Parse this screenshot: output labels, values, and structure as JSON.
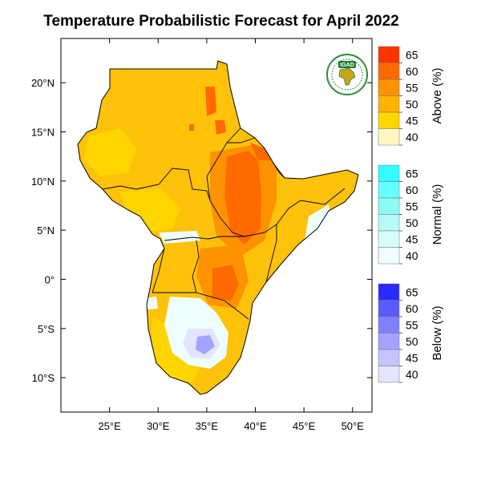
{
  "title": "Temperature Probabilistic Forecast for April 2022",
  "logo": {
    "text": "IGAD",
    "colors": {
      "ring": "#2e8b3a",
      "core": "#c9a21b",
      "badge": "#1f7a34"
    }
  },
  "axes": {
    "lon": {
      "min": 20,
      "max": 52,
      "ticks": [
        25,
        30,
        35,
        40,
        45,
        50
      ],
      "labels": [
        "25°E",
        "30°E",
        "35°E",
        "40°E",
        "45°E",
        "50°E"
      ]
    },
    "lat": {
      "min": -13.5,
      "max": 24.5,
      "ticks": [
        20,
        15,
        10,
        5,
        0,
        -5,
        -10
      ],
      "labels": [
        "20°N",
        "15°N",
        "10°N",
        "5°N",
        "0°",
        "5°S",
        "10°S"
      ]
    }
  },
  "legend": [
    {
      "title": "Above (%)",
      "levels": [
        "65",
        "60",
        "55",
        "50",
        "45",
        "40"
      ],
      "colors": [
        "#ff3300",
        "#ff6a00",
        "#ff9200",
        "#ffb300",
        "#ffd500",
        "#fff7c4"
      ]
    },
    {
      "title": "Normal (%)",
      "levels": [
        "65",
        "60",
        "55",
        "50",
        "45",
        "40"
      ],
      "colors": [
        "#33ffff",
        "#66ffff",
        "#8dfbf6",
        "#b5fbf8",
        "#d6fdfb",
        "#eefffd"
      ]
    },
    {
      "title": "Below (%)",
      "levels": [
        "65",
        "60",
        "55",
        "50",
        "45",
        "40"
      ],
      "colors": [
        "#2b2bff",
        "#5a5aff",
        "#8080ff",
        "#a3a3ff",
        "#c4c4ff",
        "#e4e4ff"
      ]
    }
  ],
  "map_colors": {
    "base": "#ffc20a",
    "light": "#ffd500",
    "mid": "#ff9200",
    "high": "#ff6a00",
    "top": "#ff3300",
    "normal": "#eefffd",
    "below_light": "#e4e4ff",
    "below_mid": "#a3a3ff",
    "border": "#000000"
  }
}
